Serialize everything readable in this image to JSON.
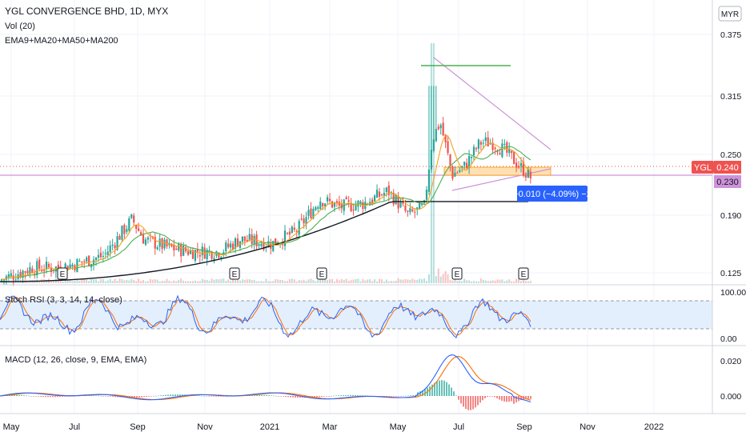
{
  "header": {
    "title": "YGL CONVERGENCE BHD, 1D, MYX",
    "vol_label": "Vol (20)",
    "ma_label": "EMA9+MA20+MA50+MA200",
    "currency": "MYR"
  },
  "chart_data": [
    {
      "type": "candlestick",
      "title": "YGL CONVERGENCE BHD, 1D, MYX",
      "symbol": "YGL",
      "last_price": "0.240",
      "ref_price": "0.230",
      "ylim": [
        0.11,
        0.39
      ],
      "y_ticks": [
        "0.375",
        "0.315",
        "0.250",
        "0.190",
        "0.125"
      ],
      "x_ticks": [
        "May",
        "Jul",
        "Sep",
        "Nov",
        "2021",
        "Mar",
        "May",
        "Jul",
        "Sep",
        "Nov",
        "2022"
      ],
      "earnings_markers": [
        "E",
        "E",
        "E",
        "E",
        "E",
        "E"
      ],
      "measure_label": "−0.010 (−4.09%) −2",
      "closes_approx": [
        {
          "date": "2020-05",
          "close": 0.125
        },
        {
          "date": "2020-07",
          "close": 0.135
        },
        {
          "date": "2020-08",
          "close": 0.19
        },
        {
          "date": "2020-09",
          "close": 0.155
        },
        {
          "date": "2020-11",
          "close": 0.15
        },
        {
          "date": "2021-01",
          "close": 0.165
        },
        {
          "date": "2021-02",
          "close": 0.21
        },
        {
          "date": "2021-03",
          "close": 0.215
        },
        {
          "date": "2021-05",
          "close": 0.22
        },
        {
          "date": "2021-06",
          "close": 0.29
        },
        {
          "date": "2021-07",
          "close": 0.255
        },
        {
          "date": "2021-08",
          "close": 0.285
        },
        {
          "date": "2021-09",
          "close": 0.24
        }
      ],
      "colors": {
        "up": "#26a69a",
        "down": "#ef5350",
        "ema9": "#f7a21b",
        "ma20": "#4caf50",
        "ma200": "#131722",
        "triangle": "#ce93d8",
        "zone": "#ffe0b2",
        "green_line": "#4caf50"
      }
    },
    {
      "type": "line",
      "title": "Stoch RSI (3, 3, 14, 14, close)",
      "y_ticks": [
        "100.00",
        "0.00"
      ],
      "bands": [
        80,
        20
      ],
      "colors": {
        "k": "#2962ff",
        "d": "#ff6d00",
        "band": "#e3effd"
      }
    },
    {
      "type": "line",
      "title": "MACD (12, 26, close, 9, EMA, EMA)",
      "y_ticks": [
        "0.020",
        "0.000"
      ],
      "colors": {
        "macd": "#2962ff",
        "signal": "#ff6d00",
        "hist_up": "#26a69a",
        "hist_down": "#ef5350"
      }
    }
  ]
}
